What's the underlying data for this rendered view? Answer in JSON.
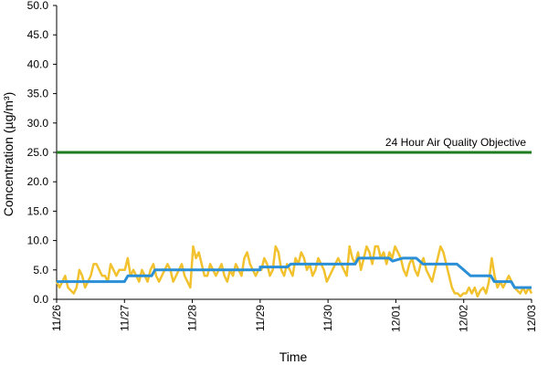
{
  "chart_data": {
    "type": "line",
    "title": "",
    "xlabel": "Time",
    "ylabel": "Concentration (µg/m³)",
    "ylim": [
      0,
      50
    ],
    "y_ticks": [
      "0.0",
      "5.0",
      "10.0",
      "15.0",
      "20.0",
      "25.0",
      "30.0",
      "35.0",
      "40.0",
      "45.0",
      "50.0"
    ],
    "x_ticks": [
      "11/26",
      "11/27",
      "11/28",
      "11/29",
      "11/30",
      "12/01",
      "12/02",
      "12/03"
    ],
    "x_tick_rotation": "vertical",
    "grid": false,
    "legend": "none",
    "annotations": [
      {
        "text": "24 Hour Air Quality Objective",
        "y": 25
      }
    ],
    "series": [
      {
        "color": "#1e7b1e",
        "style": "objective-line",
        "x": [
          "11/26",
          "12/03"
        ],
        "values": [
          25,
          25
        ]
      },
      {
        "color": "#f2c12e",
        "style": "hourly",
        "x": [
          "11/26",
          "11/26",
          "11/26",
          "11/26",
          "11/26",
          "11/26",
          "11/26",
          "11/26",
          "11/26",
          "11/26",
          "11/26",
          "11/26",
          "11/26",
          "11/26",
          "11/26",
          "11/26",
          "11/26",
          "11/26",
          "11/26",
          "11/26",
          "11/26",
          "11/26",
          "11/26",
          "11/26",
          "11/26",
          "11/26",
          "11/26",
          "11/26",
          "11/26",
          "11/26",
          "11/26",
          "11/26",
          "11/26",
          "11/26",
          "11/26",
          "11/26",
          "11/26",
          "11/26",
          "11/26",
          "11/26",
          "11/26",
          "11/26",
          "11/26",
          "11/26",
          "11/26",
          "11/26",
          "11/26",
          "11/26"
        ],
        "values": [
          3,
          2,
          3,
          4,
          2,
          1.5,
          1,
          2,
          5,
          4,
          2,
          3,
          4,
          6,
          6,
          5,
          4,
          4,
          3,
          6,
          5,
          4,
          5,
          5,
          5,
          7,
          4,
          5,
          4,
          3,
          5,
          4,
          3,
          5,
          6,
          4,
          3,
          4,
          5,
          6,
          5,
          3,
          4,
          5,
          6,
          4,
          3,
          2
        ]
      },
      {
        "color": "#2a8fd6",
        "style": "running-average",
        "x": [],
        "values": []
      }
    ]
  }
}
